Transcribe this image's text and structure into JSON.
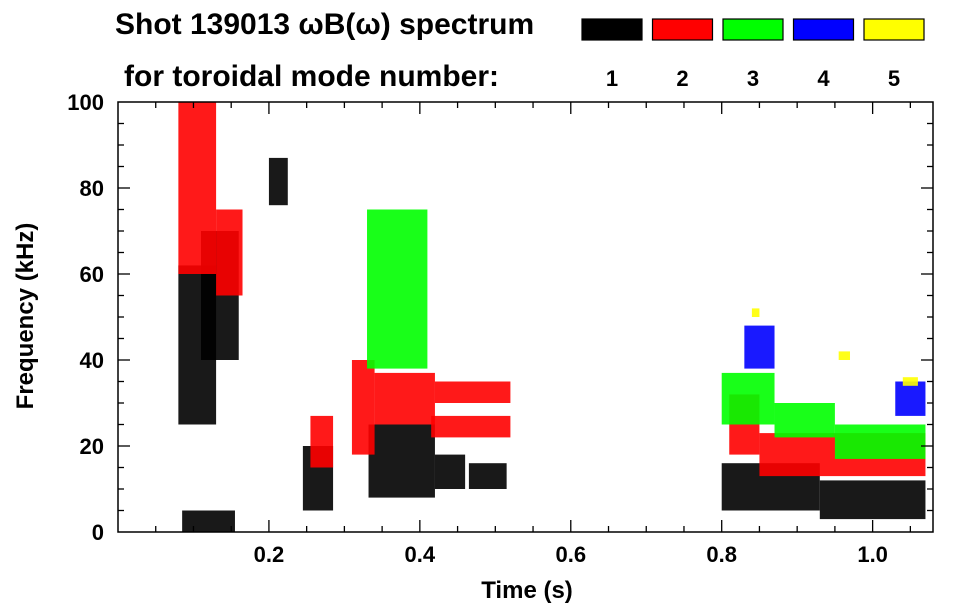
{
  "chart_data": {
    "type": "heatmap",
    "title": "Shot 139013 ωB(ω) spectrum",
    "subtitle": "for toroidal mode number:",
    "xlabel": "Time (s)",
    "ylabel": "Frequency (kHz)",
    "xlim": [
      0.0,
      1.08
    ],
    "ylim": [
      0,
      100
    ],
    "x_ticks": [
      {
        "value": 0.2,
        "label": "0.2"
      },
      {
        "value": 0.4,
        "label": "0.4"
      },
      {
        "value": 0.6,
        "label": "0.6"
      },
      {
        "value": 0.8,
        "label": "0.8"
      },
      {
        "value": 1.0,
        "label": "1.0"
      }
    ],
    "y_ticks": [
      {
        "value": 0,
        "label": "0"
      },
      {
        "value": 20,
        "label": "20"
      },
      {
        "value": 40,
        "label": "40"
      },
      {
        "value": 60,
        "label": "60"
      },
      {
        "value": 80,
        "label": "80"
      },
      {
        "value": 100,
        "label": "100"
      }
    ],
    "legend": {
      "placement": "top-right",
      "entries": [
        {
          "label": "1",
          "color": "#000000"
        },
        {
          "label": "2",
          "color": "#ff0000"
        },
        {
          "label": "3",
          "color": "#00ff00"
        },
        {
          "label": "4",
          "color": "#0000ff"
        },
        {
          "label": "5",
          "color": "#ffff00"
        }
      ]
    },
    "series": [
      {
        "mode": 1,
        "color": "#000000",
        "blobs": [
          {
            "t0": 0.08,
            "t1": 0.13,
            "f0": 25,
            "f1": 62
          },
          {
            "t0": 0.11,
            "t1": 0.16,
            "f0": 40,
            "f1": 70
          },
          {
            "t0": 0.085,
            "t1": 0.155,
            "f0": 0,
            "f1": 5
          },
          {
            "t0": 0.2,
            "t1": 0.225,
            "f0": 76,
            "f1": 87
          },
          {
            "t0": 0.245,
            "t1": 0.285,
            "f0": 5,
            "f1": 20
          },
          {
            "t0": 0.332,
            "t1": 0.42,
            "f0": 8,
            "f1": 25
          },
          {
            "t0": 0.42,
            "t1": 0.46,
            "f0": 10,
            "f1": 18
          },
          {
            "t0": 0.465,
            "t1": 0.515,
            "f0": 10,
            "f1": 16
          },
          {
            "t0": 0.8,
            "t1": 0.93,
            "f0": 5,
            "f1": 16
          },
          {
            "t0": 0.93,
            "t1": 1.07,
            "f0": 3,
            "f1": 12
          }
        ]
      },
      {
        "mode": 2,
        "color": "#ff0000",
        "blobs": [
          {
            "t0": 0.08,
            "t1": 0.13,
            "f0": 60,
            "f1": 100
          },
          {
            "t0": 0.13,
            "t1": 0.165,
            "f0": 55,
            "f1": 75
          },
          {
            "t0": 0.255,
            "t1": 0.285,
            "f0": 15,
            "f1": 27
          },
          {
            "t0": 0.31,
            "t1": 0.34,
            "f0": 18,
            "f1": 40
          },
          {
            "t0": 0.34,
            "t1": 0.42,
            "f0": 25,
            "f1": 37
          },
          {
            "t0": 0.42,
            "t1": 0.52,
            "f0": 30,
            "f1": 35
          },
          {
            "t0": 0.415,
            "t1": 0.52,
            "f0": 22,
            "f1": 27
          },
          {
            "t0": 0.81,
            "t1": 0.85,
            "f0": 18,
            "f1": 32
          },
          {
            "t0": 0.85,
            "t1": 1.07,
            "f0": 13,
            "f1": 23
          }
        ]
      },
      {
        "mode": 3,
        "color": "#00ff00",
        "blobs": [
          {
            "t0": 0.33,
            "t1": 0.41,
            "f0": 38,
            "f1": 75
          },
          {
            "t0": 0.8,
            "t1": 0.87,
            "f0": 25,
            "f1": 37
          },
          {
            "t0": 0.87,
            "t1": 0.95,
            "f0": 22,
            "f1": 30
          },
          {
            "t0": 0.95,
            "t1": 1.07,
            "f0": 17,
            "f1": 25
          }
        ]
      },
      {
        "mode": 4,
        "color": "#0000ff",
        "blobs": [
          {
            "t0": 0.83,
            "t1": 0.87,
            "f0": 38,
            "f1": 48
          },
          {
            "t0": 1.03,
            "t1": 1.07,
            "f0": 27,
            "f1": 35
          }
        ]
      },
      {
        "mode": 5,
        "color": "#ffff00",
        "blobs": [
          {
            "t0": 0.84,
            "t1": 0.85,
            "f0": 50,
            "f1": 52
          },
          {
            "t0": 0.955,
            "t1": 0.97,
            "f0": 40,
            "f1": 42
          },
          {
            "t0": 1.04,
            "t1": 1.06,
            "f0": 34,
            "f1": 36
          }
        ]
      }
    ]
  }
}
